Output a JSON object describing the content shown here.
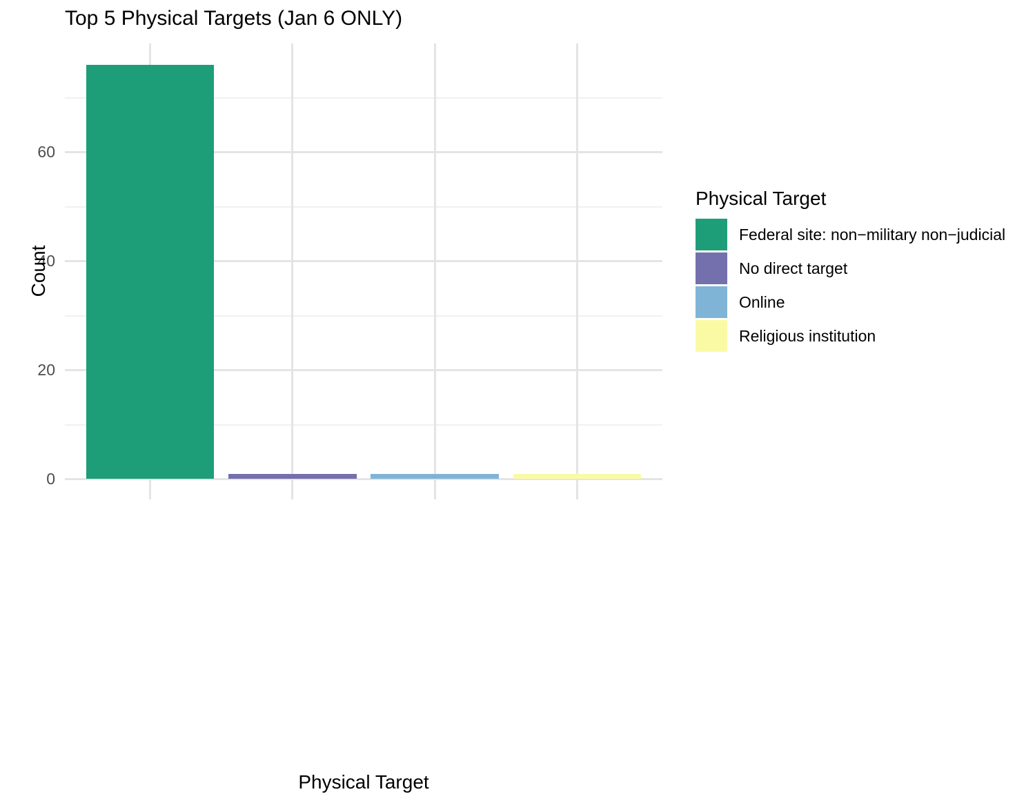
{
  "chart_data": {
    "type": "bar",
    "title": "Top 5 Physical Targets (Jan 6 ONLY)",
    "xlabel": "Physical Target",
    "ylabel": "Count",
    "categories": [
      "Federal site: non−military non−judicial",
      "No direct target",
      "Online",
      "Religious institution"
    ],
    "values": [
      76,
      1,
      1,
      1
    ],
    "bar_colors": [
      "#1d9e79",
      "#7470ad",
      "#80b4d6",
      "#fafaa5"
    ],
    "yticks": [
      0,
      20,
      40,
      60
    ],
    "ylim": [
      0,
      79.8
    ],
    "grid": "major-and-minor",
    "legend": {
      "title": "Physical Target",
      "position": "right",
      "entries": [
        {
          "label": "Federal site: non−military non−judicial",
          "color": "#1d9e79"
        },
        {
          "label": "No direct target",
          "color": "#7470ad"
        },
        {
          "label": "Online",
          "color": "#80b4d6"
        },
        {
          "label": "Religious institution",
          "color": "#fafaa5"
        }
      ]
    },
    "colors": {
      "grid_major": "#e4e4e4",
      "grid_minor": "#f1f1f1",
      "tick_label": "#4d4d4d",
      "text": "#000000",
      "background": "#ffffff"
    }
  }
}
